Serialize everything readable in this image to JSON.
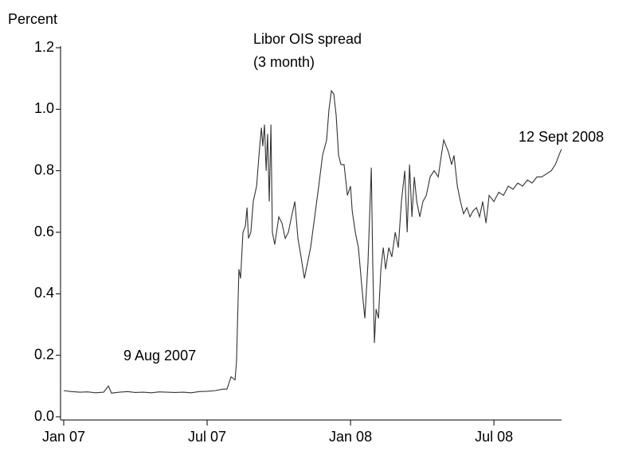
{
  "chart_data": {
    "type": "line",
    "y_label": "Percent",
    "annotations": [
      "Libor OIS spread",
      "(3 month)",
      "9 Aug 2007",
      "12 Sept 2008"
    ],
    "xlim": [
      0,
      20.83
    ],
    "xticks": [
      {
        "value": 0,
        "label": "Jan 07"
      },
      {
        "value": 6,
        "label": "Jul 07"
      },
      {
        "value": 12,
        "label": "Jan 08"
      },
      {
        "value": 18,
        "label": "Jul 08"
      }
    ],
    "ylim": [
      0,
      1.2
    ],
    "yticks": [
      {
        "value": 0,
        "label": "0.0"
      },
      0.2,
      0.4,
      0.6,
      0.8,
      {
        "value": 1,
        "label": "1.0"
      },
      1.2
    ],
    "color": "#333333",
    "x": [
      0,
      0.33,
      0.67,
      1,
      1.33,
      1.67,
      1.87,
      2,
      2.33,
      2.67,
      3,
      3.33,
      3.67,
      4,
      4.33,
      4.67,
      5,
      5.33,
      5.67,
      6,
      6.33,
      6.67,
      6.83,
      7,
      7.17,
      7.23,
      7.33,
      7.4,
      7.5,
      7.6,
      7.67,
      7.73,
      7.83,
      7.93,
      8.07,
      8.17,
      8.27,
      8.33,
      8.4,
      8.47,
      8.53,
      8.6,
      8.67,
      8.73,
      8.83,
      9,
      9.13,
      9.27,
      9.4,
      9.53,
      9.67,
      9.8,
      9.93,
      10.07,
      10.2,
      10.33,
      10.5,
      10.67,
      10.83,
      11,
      11.1,
      11.2,
      11.3,
      11.4,
      11.5,
      11.6,
      11.73,
      11.87,
      12,
      12.07,
      12.2,
      12.33,
      12.5,
      12.6,
      12.73,
      12.87,
      12.93,
      13,
      13.07,
      13.17,
      13.27,
      13.37,
      13.47,
      13.6,
      13.73,
      13.87,
      14,
      14.13,
      14.27,
      14.37,
      14.47,
      14.57,
      14.67,
      14.77,
      14.9,
      15.03,
      15.17,
      15.33,
      15.5,
      15.67,
      15.8,
      15.9,
      16,
      16.1,
      16.23,
      16.33,
      16.47,
      16.6,
      16.73,
      16.87,
      17,
      17.13,
      17.27,
      17.4,
      17.53,
      17.67,
      17.8,
      18,
      18.2,
      18.4,
      18.6,
      18.8,
      19,
      19.2,
      19.4,
      19.6,
      19.8,
      20,
      20.2,
      20.4,
      20.57,
      20.67,
      20.77,
      20.83
    ],
    "values": [
      0.085,
      0.082,
      0.08,
      0.081,
      0.078,
      0.08,
      0.1,
      0.077,
      0.08,
      0.082,
      0.079,
      0.08,
      0.078,
      0.081,
      0.08,
      0.079,
      0.08,
      0.078,
      0.082,
      0.083,
      0.085,
      0.09,
      0.09,
      0.13,
      0.12,
      0.18,
      0.48,
      0.45,
      0.6,
      0.62,
      0.68,
      0.58,
      0.6,
      0.7,
      0.75,
      0.85,
      0.94,
      0.88,
      0.95,
      0.8,
      0.92,
      0.7,
      0.95,
      0.6,
      0.56,
      0.65,
      0.63,
      0.58,
      0.6,
      0.65,
      0.7,
      0.58,
      0.52,
      0.45,
      0.5,
      0.55,
      0.65,
      0.75,
      0.85,
      0.9,
      1.0,
      1.06,
      1.05,
      0.98,
      0.85,
      0.82,
      0.82,
      0.72,
      0.75,
      0.67,
      0.6,
      0.55,
      0.4,
      0.32,
      0.5,
      0.81,
      0.5,
      0.24,
      0.35,
      0.32,
      0.48,
      0.55,
      0.48,
      0.55,
      0.52,
      0.6,
      0.55,
      0.7,
      0.8,
      0.6,
      0.82,
      0.65,
      0.78,
      0.7,
      0.65,
      0.7,
      0.72,
      0.78,
      0.8,
      0.78,
      0.85,
      0.9,
      0.88,
      0.86,
      0.82,
      0.85,
      0.75,
      0.7,
      0.66,
      0.68,
      0.65,
      0.67,
      0.68,
      0.65,
      0.7,
      0.63,
      0.72,
      0.7,
      0.73,
      0.72,
      0.75,
      0.74,
      0.76,
      0.75,
      0.77,
      0.76,
      0.78,
      0.78,
      0.79,
      0.8,
      0.82,
      0.84,
      0.86,
      0.87
    ]
  }
}
